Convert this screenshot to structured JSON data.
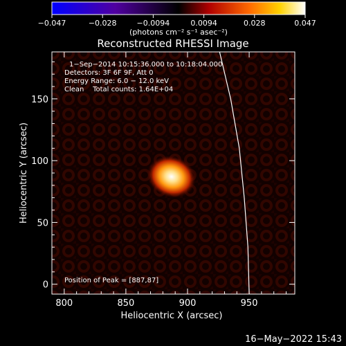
{
  "chart_data": {
    "type": "heatmap",
    "title": "Reconstructed RHESSI Image",
    "xlabel": "Heliocentric X (arcsec)",
    "ylabel": "Heliocentric Y (arcsec)",
    "xlim": [
      790,
      987
    ],
    "ylim": [
      -8,
      188
    ],
    "xticks": [
      800,
      850,
      900,
      950
    ],
    "yticks": [
      0,
      50,
      100,
      150
    ],
    "colorbar": {
      "ticks": [
        "−0.047",
        "−0.028",
        "−0.0094",
        "0.0094",
        "0.028",
        "0.047"
      ],
      "unit_label": "(photons cm⁻² s⁻¹ asec⁻²)",
      "range": [
        -0.047,
        0.047
      ],
      "colors": [
        "#0000ff",
        "#5000a0",
        "#000000",
        "#b00000",
        "#ff6a00",
        "#ffd200",
        "#ffffff"
      ]
    },
    "info_lines": [
      "1−Sep−2014 10:15:36.000 to 10:18:04.000",
      "Detectors: 3F 6F 9F, Att 0",
      "Energy Range: 6.0 − 12.0 keV",
      "Clean    Total counts: 1.64E+04"
    ],
    "peak_label": "Position of Peak = [887,87]",
    "peak": {
      "x": 887,
      "y": 87,
      "value": 0.047
    },
    "limb": [
      [
        926,
        188
      ],
      [
        935,
        150
      ],
      [
        942,
        110
      ],
      [
        946,
        70
      ],
      [
        949,
        30
      ],
      [
        950,
        -8
      ]
    ],
    "date_stamp": "16−May−2022 15:43"
  }
}
